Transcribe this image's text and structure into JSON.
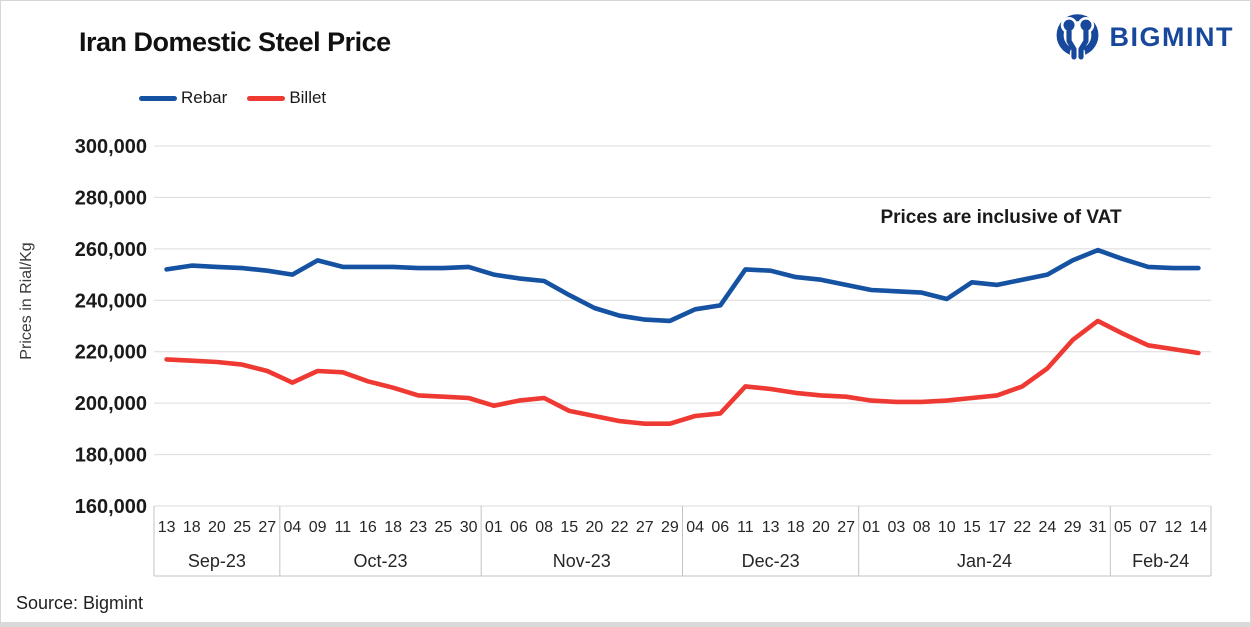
{
  "header": {
    "title": "Iran Domestic Steel Price",
    "logo_text": "BIGMINT"
  },
  "legend": {
    "items": [
      {
        "label": "Rebar",
        "color": "#1552a2"
      },
      {
        "label": "Billet",
        "color": "#ee3a33"
      }
    ]
  },
  "source": "Source: Bigmint",
  "chart_data": {
    "type": "line",
    "title": "Iran Domestic Steel Price",
    "xlabel": "",
    "ylabel": "Prices in Rial/Kg",
    "ylim": [
      160000,
      300000
    ],
    "y_ticks": [
      160000,
      180000,
      200000,
      220000,
      240000,
      260000,
      280000,
      300000
    ],
    "grid": true,
    "grid_color": "#dcdcdc",
    "axis_border_color": "#c3c3c3",
    "legend_position": "top-left",
    "annotation": "Prices are inclusive of VAT",
    "month_groups": [
      {
        "label": "Sep-23",
        "days": [
          "13",
          "18",
          "20",
          "25",
          "27"
        ]
      },
      {
        "label": "Oct-23",
        "days": [
          "04",
          "09",
          "11",
          "16",
          "18",
          "23",
          "25",
          "30"
        ]
      },
      {
        "label": "Nov-23",
        "days": [
          "01",
          "06",
          "08",
          "15",
          "20",
          "22",
          "27",
          "29"
        ]
      },
      {
        "label": "Dec-23",
        "days": [
          "04",
          "06",
          "11",
          "13",
          "18",
          "20",
          "27"
        ]
      },
      {
        "label": "Jan-24",
        "days": [
          "01",
          "03",
          "08",
          "10",
          "15",
          "17",
          "22",
          "24",
          "29",
          "31"
        ]
      },
      {
        "label": "Feb-24",
        "days": [
          "05",
          "07",
          "12",
          "14"
        ]
      }
    ],
    "series": [
      {
        "name": "Rebar",
        "color": "#1552a2",
        "values": [
          252000,
          253500,
          253000,
          252500,
          251500,
          250000,
          255500,
          253000,
          253000,
          253000,
          252500,
          252500,
          253000,
          250000,
          248500,
          247500,
          242000,
          237000,
          234000,
          232500,
          232000,
          236500,
          238000,
          252000,
          251500,
          249000,
          248000,
          246000,
          244000,
          243500,
          243000,
          240500,
          247000,
          246000,
          248000,
          250000,
          255500,
          259500,
          256000,
          253000,
          252500,
          252500
        ]
      },
      {
        "name": "Billet",
        "color": "#ee3a33",
        "values": [
          217000,
          216500,
          216000,
          215000,
          212500,
          208000,
          212500,
          212000,
          208500,
          206000,
          203000,
          202500,
          202000,
          199000,
          201000,
          202000,
          197000,
          195000,
          193000,
          192000,
          192000,
          195000,
          196000,
          206500,
          205500,
          204000,
          203000,
          202500,
          201000,
          200500,
          200500,
          201000,
          202000,
          203000,
          206500,
          213500,
          224500,
          232000,
          227000,
          222500,
          221000,
          219500
        ]
      }
    ]
  }
}
